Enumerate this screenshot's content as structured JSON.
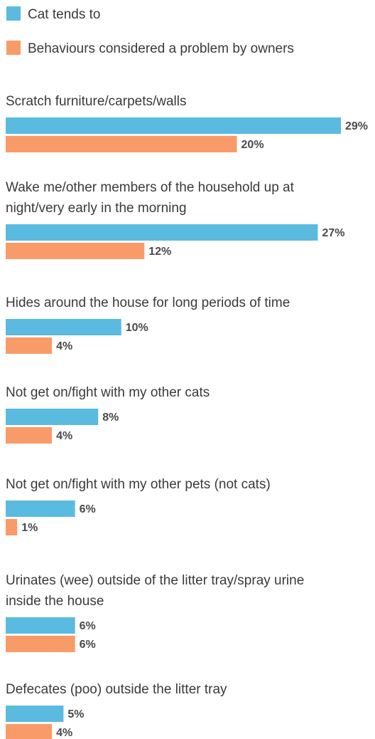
{
  "chart_data": {
    "type": "bar",
    "orientation": "horizontal",
    "legend": "top-left",
    "grid": false,
    "value_unit": "%",
    "colors": {
      "Cat tends to": "#5bbadf",
      "Behaviours considered a problem by owners": "#f99b68"
    },
    "series": [
      {
        "name": "Cat tends to",
        "values": [
          29,
          27,
          10,
          8,
          6,
          6,
          5
        ]
      },
      {
        "name": "Behaviours considered a problem by owners",
        "values": [
          20,
          12,
          4,
          4,
          1,
          6,
          4
        ]
      }
    ],
    "categories": [
      [
        "Scratch furniture/carpets/walls"
      ],
      [
        "Wake me/other members of the household up at",
        "night/very early in the morning"
      ],
      [
        "Hides around the house for long periods of time"
      ],
      [
        "Not get on/fight with my other cats"
      ],
      [
        "Not get on/fight with my other pets (not cats)"
      ],
      [
        "Urinates (wee) outside of the litter tray/spray urine",
        "inside the house"
      ],
      [
        "Defecates (poo) outside the litter tray"
      ]
    ],
    "value_labels": [
      [
        "29%",
        "27%",
        "10%",
        "8%",
        "6%",
        "6%",
        "5%"
      ],
      [
        "20%",
        "12%",
        "4%",
        "4%",
        "1%",
        "6%",
        "4%"
      ]
    ]
  }
}
